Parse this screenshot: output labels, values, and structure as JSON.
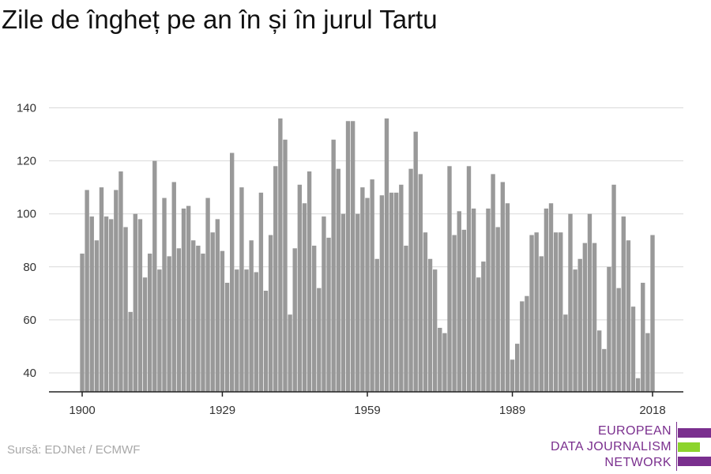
{
  "title": "Zile de îngheț pe an în și în jurul Tartu",
  "source": "Sursă: EDJNet / ECMWF",
  "logo": {
    "line1": "EUROPEAN",
    "line2": "DATA JOURNALISM",
    "line3": "NETWORK",
    "colors": {
      "purple": "#7a2f8e",
      "green": "#8cd42c"
    }
  },
  "chart_data": {
    "type": "bar",
    "title": "Zile de îngheț pe an în și în jurul Tartu",
    "xlabel": "",
    "ylabel": "",
    "bar_color": "#999999",
    "grid": true,
    "ylim": [
      33,
      143
    ],
    "yticks": [
      40,
      60,
      80,
      100,
      120,
      140
    ],
    "xtick_labels": [
      "1900",
      "1929",
      "1959",
      "1989",
      "2018"
    ],
    "start_year": 1900,
    "values": [
      85,
      109,
      99,
      90,
      110,
      99,
      98,
      109,
      116,
      95,
      63,
      100,
      98,
      76,
      85,
      120,
      79,
      106,
      84,
      112,
      87,
      102,
      103,
      90,
      88,
      85,
      106,
      93,
      98,
      86,
      74,
      123,
      79,
      110,
      79,
      90,
      78,
      108,
      71,
      92,
      118,
      136,
      128,
      62,
      87,
      111,
      104,
      116,
      88,
      72,
      99,
      91,
      128,
      117,
      100,
      135,
      135,
      100,
      110,
      106,
      113,
      83,
      107,
      136,
      108,
      108,
      111,
      88,
      117,
      131,
      115,
      93,
      83,
      79,
      57,
      55,
      118,
      92,
      101,
      94,
      118,
      102,
      76,
      82,
      102,
      115,
      95,
      112,
      104,
      45,
      51,
      67,
      69,
      92,
      93,
      84,
      102,
      104,
      93,
      93,
      62,
      100,
      79,
      83,
      89,
      100,
      89,
      56,
      49,
      80,
      111,
      72,
      99,
      90,
      65,
      38,
      74,
      55,
      92
    ]
  }
}
